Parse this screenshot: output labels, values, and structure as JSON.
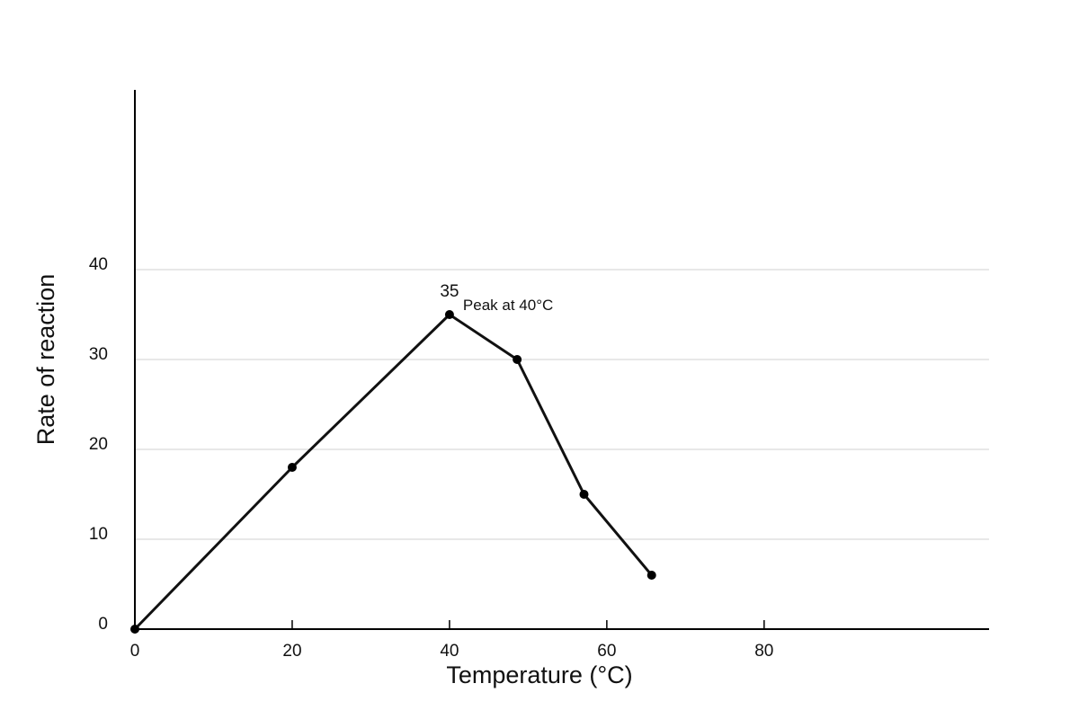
{
  "chart_data": {
    "type": "line",
    "xlabel": "Temperature (°C)",
    "ylabel": "Rate of reaction",
    "xlim": [
      0,
      108.6
    ],
    "ylim": [
      0,
      60
    ],
    "x_ticks": [
      0,
      20,
      40,
      60,
      80
    ],
    "y_ticks": [
      0,
      10,
      20,
      30,
      40
    ],
    "grid": true,
    "series": [
      {
        "x": [
          0,
          20,
          40,
          48.6,
          57.1,
          65.7
        ],
        "y": [
          0,
          18,
          35,
          30,
          15,
          6
        ]
      }
    ],
    "data_labels": [
      {
        "x": 40,
        "y": 35,
        "text": "35"
      }
    ],
    "annotations": [
      {
        "x": 40,
        "y": 35,
        "text": "Peak at 40°C"
      }
    ],
    "colors": {
      "line": "#111111",
      "point": "#000000",
      "grid": "#d9d9d9",
      "axis": "#000000"
    }
  }
}
